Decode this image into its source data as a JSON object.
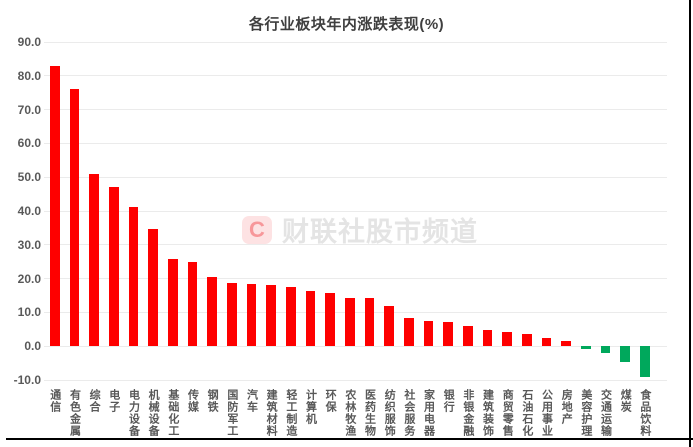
{
  "chart_data": {
    "type": "bar",
    "title": "各行业板块年内涨跌表现(%)",
    "xlabel": "",
    "ylabel": "",
    "ylim": [
      -10,
      90
    ],
    "yticks": [
      90.0,
      80.0,
      70.0,
      60.0,
      50.0,
      40.0,
      30.0,
      20.0,
      10.0,
      0.0,
      -10.0
    ],
    "grid": true,
    "legend": "none",
    "positive_color": "#fe0000",
    "negative_color": "#00a85c",
    "categories": [
      "通信",
      "有色金属",
      "综合",
      "电子",
      "电力设备",
      "机械设备",
      "基础化工",
      "传媒",
      "钢铁",
      "国防军工",
      "汽车",
      "建筑材料",
      "轻工制造",
      "计算机",
      "环保",
      "农林牧渔",
      "医药生物",
      "纺织服饰",
      "社会服务",
      "家用电器",
      "银行",
      "非银金融",
      "建筑装饰",
      "商贸零售",
      "石油石化",
      "公用事业",
      "房地产",
      "美容护理",
      "交通运输",
      "煤炭",
      "食品饮料"
    ],
    "values": [
      83.0,
      76.0,
      51.0,
      47.0,
      41.3,
      34.6,
      25.8,
      24.9,
      20.5,
      18.7,
      18.4,
      18.0,
      17.4,
      16.3,
      15.6,
      14.4,
      14.3,
      11.8,
      8.2,
      7.4,
      7.2,
      5.9,
      4.7,
      4.2,
      3.6,
      2.4,
      1.4,
      -0.9,
      -2.0,
      -4.7,
      -9.1
    ]
  },
  "watermark": {
    "logo_letter": "C",
    "text": "财联社股市频道"
  }
}
